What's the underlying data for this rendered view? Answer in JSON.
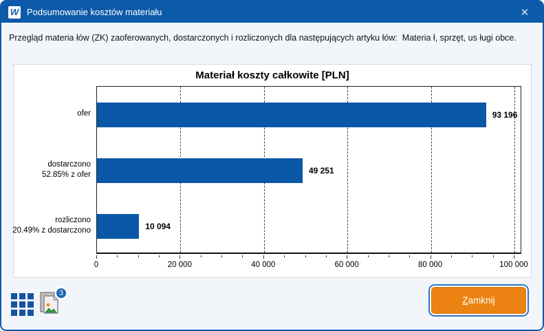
{
  "window": {
    "title": "Podsumowanie kosztów materiału",
    "logo_glyph": "W"
  },
  "icons": {
    "close": "✕"
  },
  "description": "Przegląd materia łów (ZK) zaoferowanych, dostarczonych i rozliczonych dla następujących artyku łów:  Materia ł, sprzęt, us ługi obce.",
  "chart_data": {
    "type": "bar",
    "orientation": "horizontal",
    "title": "Materiał koszty całkowite [PLN]",
    "categories": [
      [
        "ofer"
      ],
      [
        "dostarczono",
        "52.85% z ofer"
      ],
      [
        "rozliczono",
        "20.49% z dostarczono"
      ]
    ],
    "values": [
      93196,
      49251,
      10094
    ],
    "value_labels": [
      "93 196",
      "49 251",
      "10 094"
    ],
    "xlim": [
      0,
      100000
    ],
    "x_ticks": [
      0,
      20000,
      40000,
      60000,
      80000,
      100000
    ],
    "x_tick_labels": [
      "0",
      "20 000",
      "40 000",
      "60 000",
      "80 000",
      "100 000"
    ],
    "minor_tick_step": 5000,
    "grid": "vertical-dashed",
    "legend": "none",
    "bar_color": "#0a57a7"
  },
  "footer": {
    "image_badge_count": "3",
    "close_button_label": "Zamknij"
  },
  "colors": {
    "titlebar": "#0e5aaa",
    "dialog_border": "#0e5aaa",
    "bar": "#0a57a7",
    "button": "#ec8211",
    "button_focus_ring": "#2e75c0",
    "badge": "#1b63b5",
    "panel_bg": "#ffffff",
    "dialog_bg": "#f2f6fa"
  }
}
